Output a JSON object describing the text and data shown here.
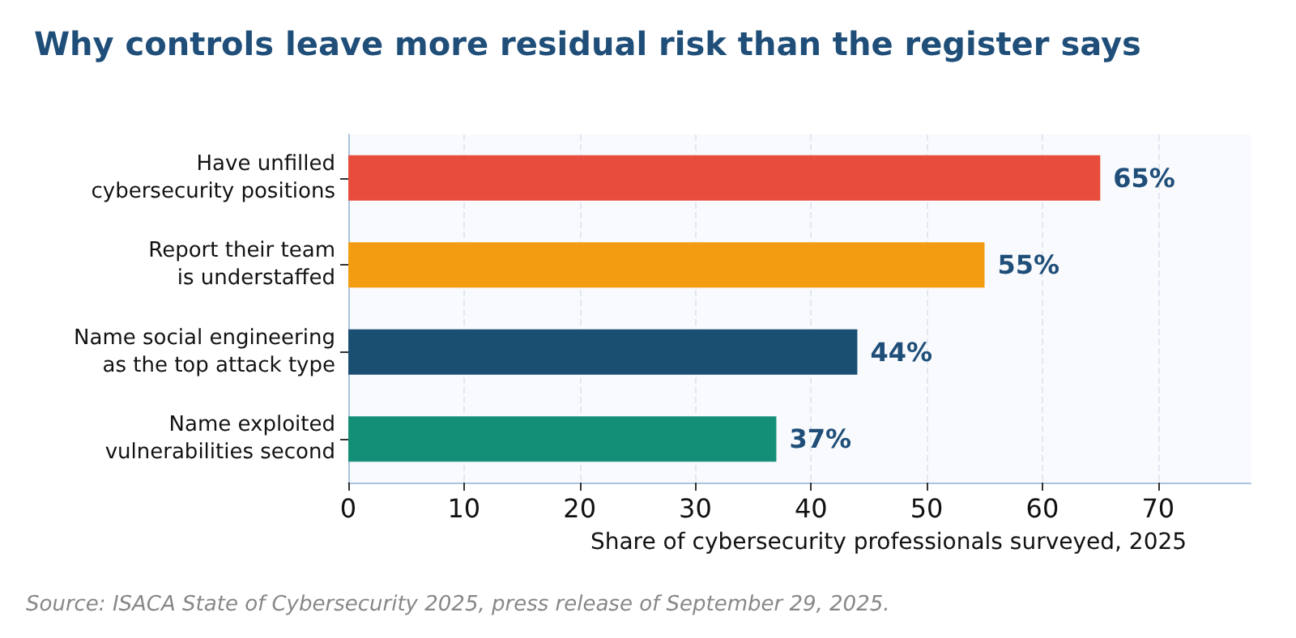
{
  "chart_data": {
    "type": "bar",
    "orientation": "horizontal",
    "title": "Why controls leave more residual risk than the register says",
    "categories": [
      "Have unfilled\ncybersecurity positions",
      "Report their team\nis understaffed",
      "Name social engineering\nas the top attack type",
      "Name exploited\nvulnerabilities second"
    ],
    "values": [
      65,
      55,
      44,
      37
    ],
    "colors": [
      "#e84c3d",
      "#f39c12",
      "#1b4f72",
      "#148f77"
    ],
    "value_labels": [
      "65%",
      "55%",
      "44%",
      "37%"
    ],
    "xlim": [
      0,
      78
    ],
    "xticks": [
      0,
      10,
      20,
      30,
      40,
      50,
      60,
      70
    ],
    "xlabel": "Share of cybersecurity professionals surveyed, 2025",
    "grid": "x",
    "annotations": [
      "Source: ISACA State of Cybersecurity 2025, press release of September 29, 2025."
    ]
  }
}
